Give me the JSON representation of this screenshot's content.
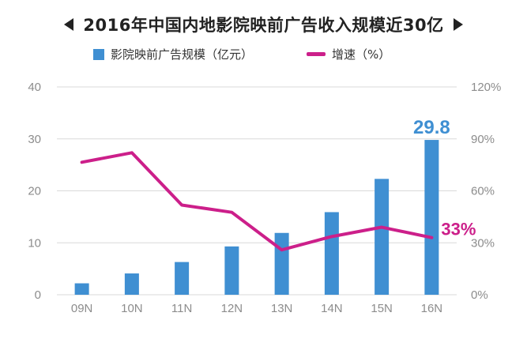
{
  "chart_data": {
    "type": "bar",
    "title": "2016年中国内地影院映前广告收入规模近30亿",
    "categories": [
      "09N",
      "10N",
      "11N",
      "12N",
      "13N",
      "14N",
      "15N",
      "16N"
    ],
    "series": [
      {
        "name": "影院映前广告规模（亿元）",
        "type": "bar",
        "axis": "left",
        "values": [
          2.2,
          4.1,
          6.3,
          9.3,
          11.9,
          15.9,
          22.3,
          29.8
        ]
      },
      {
        "name": "增速（%）",
        "type": "line",
        "axis": "right",
        "values": [
          76.5,
          82.0,
          51.8,
          47.6,
          25.9,
          33.6,
          39.0,
          33.0
        ]
      }
    ],
    "left_axis": {
      "min": 0,
      "max": 40,
      "ticks": [
        "0",
        "10",
        "20",
        "30",
        "40"
      ]
    },
    "right_axis": {
      "min": 0,
      "max": 120,
      "ticks": [
        "0%",
        "30%",
        "60%",
        "90%",
        "120%"
      ]
    },
    "annotations": {
      "last_bar_label": "29.8",
      "last_line_label": "33%"
    },
    "colors": {
      "bar": "#3f8fd2",
      "line": "#cc1f8a",
      "grid": "#d9d9d9",
      "axis_text": "#8c8c8c"
    }
  }
}
